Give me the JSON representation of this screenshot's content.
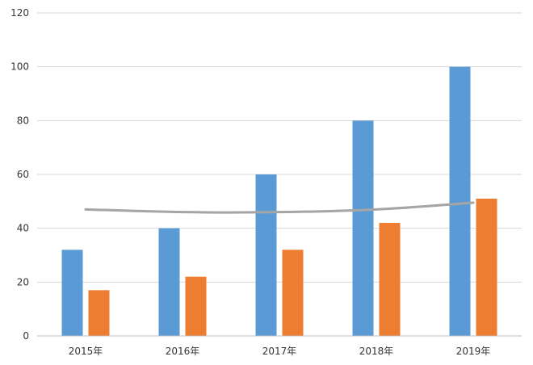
{
  "chart_data": {
    "type": "bar",
    "categories": [
      "2015年",
      "2016年",
      "2017年",
      "2018年",
      "2019年"
    ],
    "series": [
      {
        "type": "bar",
        "color": "#5b9bd5",
        "values": [
          32,
          40,
          60,
          80,
          100
        ]
      },
      {
        "type": "bar",
        "color": "#ed7d31",
        "values": [
          17,
          22,
          32,
          42,
          51
        ]
      },
      {
        "type": "line",
        "color": "#a5a5a5",
        "values": [
          47,
          46,
          46,
          47,
          49.5
        ]
      }
    ],
    "ylim": [
      0,
      120
    ],
    "yticks": [
      "0",
      "20",
      "40",
      "60",
      "80",
      "100",
      "120"
    ],
    "grid": true,
    "gridColor": "#d9d9d9"
  }
}
